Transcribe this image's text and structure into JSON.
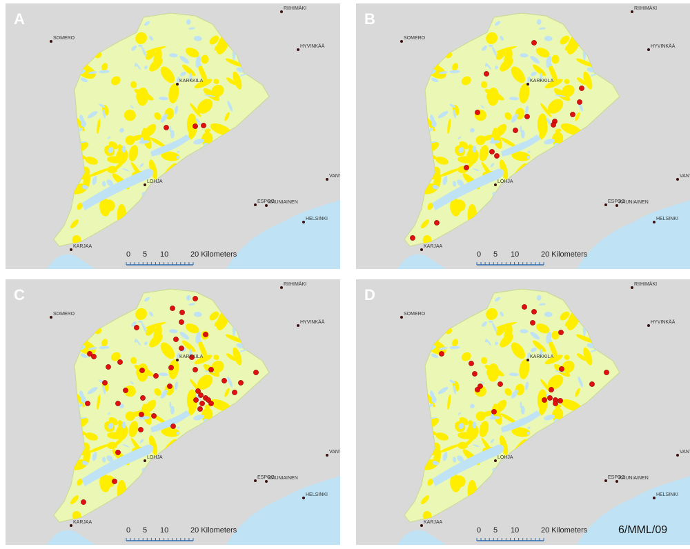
{
  "panels": [
    {
      "label": "A"
    },
    {
      "label": "B"
    },
    {
      "label": "C"
    },
    {
      "label": "D"
    }
  ],
  "towns": [
    "RIIHIMÄKI",
    "SOMERO",
    "HYVINKÄÄ",
    "KARKKILA",
    "VANTAA",
    "LOHJA",
    "ESPOO",
    "KAUNIAINEN",
    "HELSINKI",
    "KARJAA"
  ],
  "scale": {
    "labels": [
      "0",
      "5",
      "10",
      "20 Kilometers"
    ]
  },
  "credit": "6/MML/09"
}
